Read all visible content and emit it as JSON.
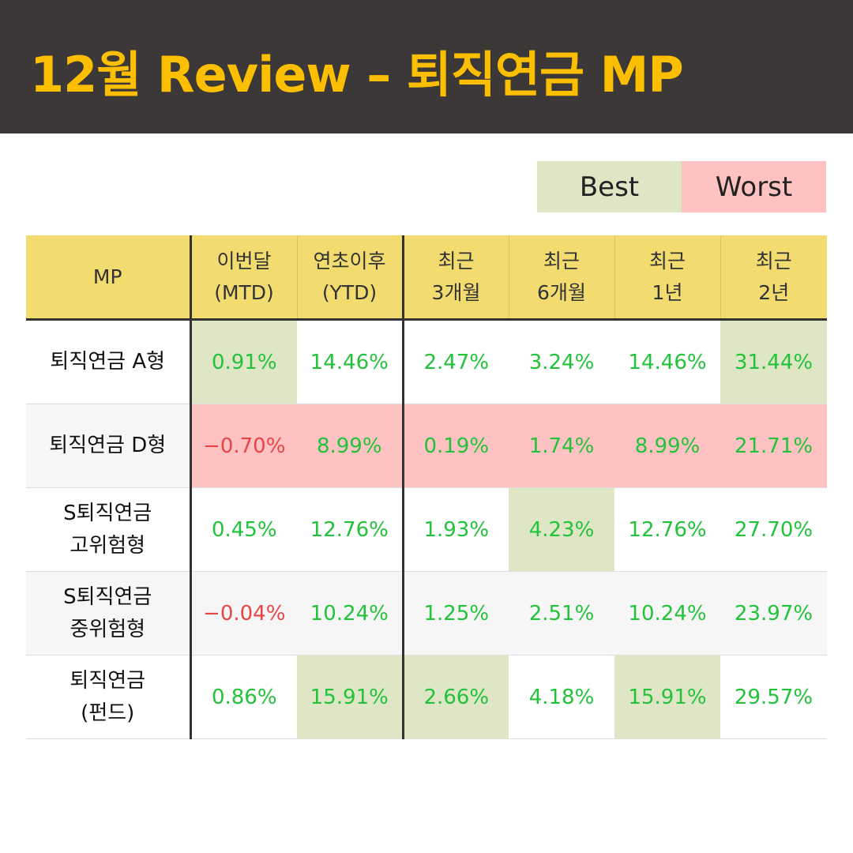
{
  "header": {
    "title": "12월 Review – 퇴직연금 MP",
    "background": "#3c3838",
    "title_color": "#fbbf00"
  },
  "legend": {
    "best_label": "Best",
    "worst_label": "Worst",
    "best_color": "#dfe6c6",
    "worst_color": "#ffc2c2"
  },
  "chart_data": {
    "type": "table",
    "columns": [
      {
        "lines": [
          "MP"
        ]
      },
      {
        "lines": [
          "이번달",
          "(MTD)"
        ]
      },
      {
        "lines": [
          "연초이후",
          "(YTD)"
        ]
      },
      {
        "lines": [
          "최근",
          "3개월"
        ]
      },
      {
        "lines": [
          "최근",
          "6개월"
        ]
      },
      {
        "lines": [
          "최근",
          "1년"
        ]
      },
      {
        "lines": [
          "최근",
          "2년"
        ]
      }
    ],
    "rows": [
      {
        "name": [
          "퇴직연금 A형"
        ],
        "values": [
          "0.91%",
          "14.46%",
          "2.47%",
          "3.24%",
          "14.46%",
          "31.44%"
        ],
        "marks": [
          "best",
          "",
          "",
          "",
          "",
          "best"
        ]
      },
      {
        "name": [
          "퇴직연금 D형"
        ],
        "values": [
          "-0.70%",
          "8.99%",
          "0.19%",
          "1.74%",
          "8.99%",
          "21.71%"
        ],
        "marks": [
          "worst",
          "worst",
          "worst",
          "worst",
          "worst",
          "worst"
        ]
      },
      {
        "name": [
          "S퇴직연금",
          "고위험형"
        ],
        "values": [
          "0.45%",
          "12.76%",
          "1.93%",
          "4.23%",
          "12.76%",
          "27.70%"
        ],
        "marks": [
          "",
          "",
          "",
          "best",
          "",
          ""
        ]
      },
      {
        "name": [
          "S퇴직연금",
          "중위험형"
        ],
        "values": [
          "-0.04%",
          "10.24%",
          "1.25%",
          "2.51%",
          "10.24%",
          "23.97%"
        ],
        "marks": [
          "",
          "",
          "",
          "",
          "",
          ""
        ]
      },
      {
        "name": [
          "퇴직연금",
          "(펀드)"
        ],
        "values": [
          "0.86%",
          "15.91%",
          "2.66%",
          "4.18%",
          "15.91%",
          "29.57%"
        ],
        "marks": [
          "",
          "best",
          "best",
          "",
          "best",
          ""
        ]
      }
    ],
    "colors": {
      "positive": "#22c33a",
      "negative": "#e84646",
      "header": "#f2dc70"
    }
  }
}
